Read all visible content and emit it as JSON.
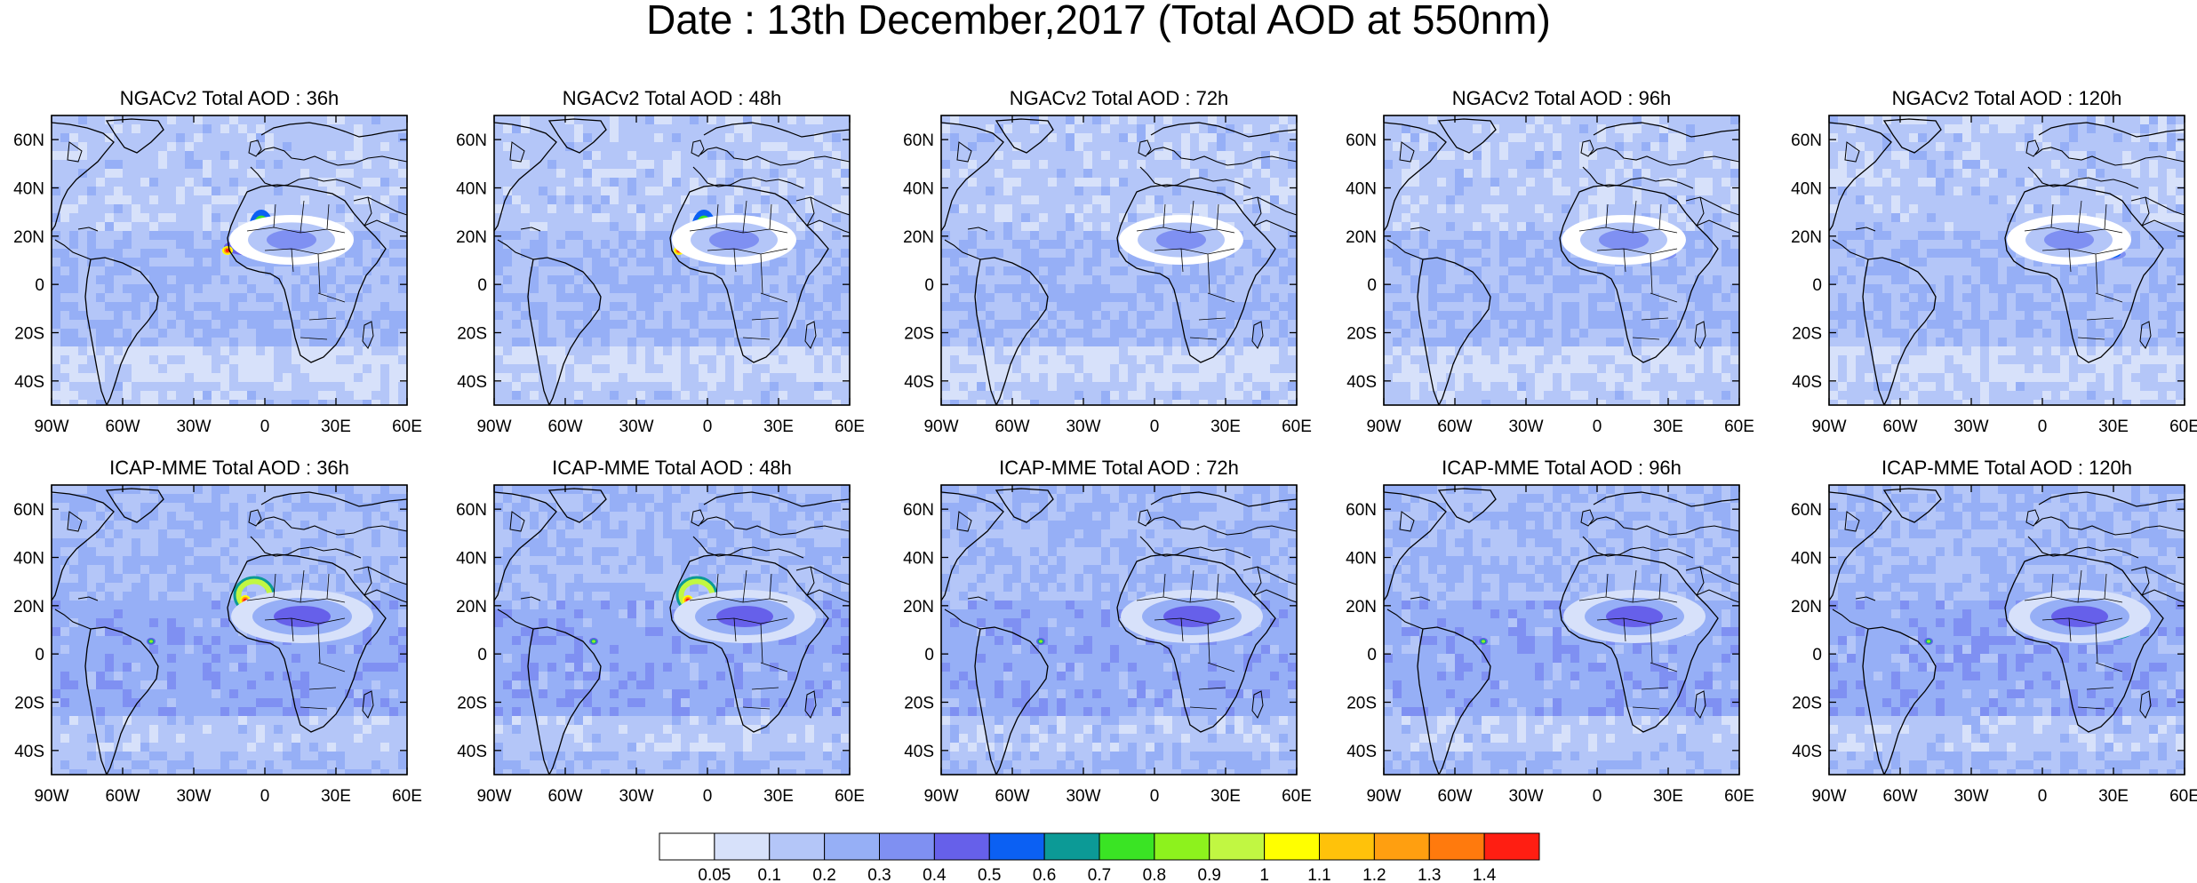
{
  "title": "Date : 13th December,2017 (Total AOD at 550nm)",
  "panel_rows": [
    {
      "row": "NGACv2",
      "panels": [
        {
          "title": "NGACv2 Total AOD : 36h"
        },
        {
          "title": "NGACv2 Total AOD : 48h"
        },
        {
          "title": "NGACv2 Total AOD : 72h"
        },
        {
          "title": "NGACv2 Total AOD : 96h"
        },
        {
          "title": "NGACv2 Total AOD : 120h"
        }
      ]
    },
    {
      "row": "ICAP-MME",
      "panels": [
        {
          "title": "ICAP-MME Total AOD : 36h"
        },
        {
          "title": "ICAP-MME Total AOD : 48h"
        },
        {
          "title": "ICAP-MME Total AOD : 72h"
        },
        {
          "title": "ICAP-MME Total AOD : 96h"
        },
        {
          "title": "ICAP-MME Total AOD : 120h"
        }
      ]
    }
  ],
  "axes": {
    "lon_ticks": [
      "90W",
      "60W",
      "30W",
      "0",
      "30E",
      "60E"
    ],
    "lat_ticks": [
      "60N",
      "40N",
      "20N",
      "0",
      "20S",
      "40S"
    ],
    "lon_range": [
      -90,
      60
    ],
    "lat_range": [
      -50,
      70
    ]
  },
  "colorbar": {
    "labels": [
      "0.05",
      "0.1",
      "0.2",
      "0.3",
      "0.4",
      "0.5",
      "0.6",
      "0.7",
      "0.8",
      "0.9",
      "1",
      "1.1",
      "1.2",
      "1.3",
      "1.4"
    ],
    "colors": [
      "#ffffff",
      "#d7e1fa",
      "#b4c6f8",
      "#96aff6",
      "#7f90f2",
      "#6660ea",
      "#0b60f3",
      "#0c9a96",
      "#3ae424",
      "#8df21d",
      "#c1f742",
      "#ffff00",
      "#ffc20a",
      "#ff9f10",
      "#ff7a0d",
      "#ff1e12"
    ]
  }
}
